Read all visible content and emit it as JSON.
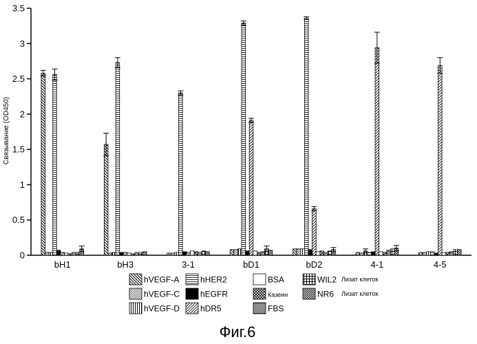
{
  "caption": "Фиг.6",
  "chart_data": {
    "type": "bar",
    "ylabel": "Связывание (OD450)",
    "xlabel": "",
    "ylim": [
      0,
      3.5
    ],
    "yticks": [
      0,
      0.5,
      1,
      1.5,
      2,
      2.5,
      3,
      3.5
    ],
    "ytick_labels": [
      "0",
      "0.5",
      "1",
      "1.5",
      "2",
      "2.5",
      "3",
      "3.5"
    ],
    "categories": [
      "bH1",
      "bH3",
      "3-1",
      "bD1",
      "bD2",
      "4-1",
      "4-5"
    ],
    "series": [
      {
        "name": "hVEGF-A",
        "pattern": "diag-back",
        "values": [
          2.58,
          1.57,
          0.03,
          0.08,
          0.09,
          0.04,
          0.04
        ]
      },
      {
        "name": "hVEGF-C",
        "pattern": "diag-fwd-fine",
        "values": [
          0.04,
          0.03,
          0.03,
          0.08,
          0.09,
          0.03,
          0.04
        ]
      },
      {
        "name": "hVEGF-D",
        "pattern": "vertical",
        "values": [
          0.04,
          0.04,
          0.04,
          0.09,
          0.09,
          0.06,
          0.05
        ]
      },
      {
        "name": "hHER2",
        "pattern": "horizontal",
        "values": [
          2.56,
          2.73,
          2.3,
          3.29,
          3.36,
          0.04,
          0.05
        ]
      },
      {
        "name": "hEGFR",
        "pattern": "solid",
        "values": [
          0.07,
          0.04,
          0.05,
          0.06,
          0.08,
          0.05,
          0.03
        ]
      },
      {
        "name": "hDR5",
        "pattern": "diag-fwd",
        "values": [
          0.04,
          0.04,
          0.04,
          1.91,
          0.66,
          2.94,
          2.69
        ]
      },
      {
        "name": "BSA",
        "pattern": "empty",
        "values": [
          0.03,
          0.03,
          0.06,
          0.06,
          0.05,
          0.05,
          0.04
        ]
      },
      {
        "name": "Казеин",
        "pattern": "crosshatch",
        "values": [
          0.02,
          0.02,
          0.05,
          0.04,
          0.06,
          0.04,
          0.04
        ]
      },
      {
        "name": "FBS",
        "pattern": "horizontal-dense",
        "values": [
          0.04,
          0.04,
          0.04,
          0.05,
          0.04,
          0.07,
          0.05
        ]
      },
      {
        "name": "WIL2",
        "pattern": "grid",
        "values": [
          0.04,
          0.04,
          0.06,
          0.09,
          0.06,
          0.09,
          0.08
        ]
      },
      {
        "name": "NR6",
        "pattern": "diag-fwd-dense",
        "values": [
          0.09,
          0.05,
          0.05,
          0.07,
          0.08,
          0.1,
          0.08
        ]
      }
    ],
    "error_bars": [
      {
        "category": "bH1",
        "series": "hVEGF-A",
        "error": 0.04
      },
      {
        "category": "bH1",
        "series": "hHER2",
        "error": 0.08
      },
      {
        "category": "bH1",
        "series": "NR6",
        "error": 0.04
      },
      {
        "category": "bH3",
        "series": "hVEGF-A",
        "error": 0.16
      },
      {
        "category": "bH3",
        "series": "hHER2",
        "error": 0.07
      },
      {
        "category": "3-1",
        "series": "hHER2",
        "error": 0.03
      },
      {
        "category": "bD1",
        "series": "hHER2",
        "error": 0.03
      },
      {
        "category": "bD1",
        "series": "hDR5",
        "error": 0.03
      },
      {
        "category": "bD1",
        "series": "WIL2",
        "error": 0.04
      },
      {
        "category": "bD2",
        "series": "hHER2",
        "error": 0.02
      },
      {
        "category": "bD2",
        "series": "hDR5",
        "error": 0.03
      },
      {
        "category": "bD2",
        "series": "NR6",
        "error": 0.03
      },
      {
        "category": "4-1",
        "series": "hDR5",
        "error": 0.22
      },
      {
        "category": "4-1",
        "series": "hVEGF-D",
        "error": 0.03
      },
      {
        "category": "4-1",
        "series": "NR6",
        "error": 0.04
      },
      {
        "category": "4-5",
        "series": "hDR5",
        "error": 0.11
      }
    ],
    "legend": {
      "placement": "bottom",
      "columns": [
        [
          "hVEGF-A",
          "hVEGF-C",
          "hVEGF-D"
        ],
        [
          "hHER2",
          "hEGFR",
          "hDR5"
        ],
        [
          "BSA",
          "Казеин",
          "FBS"
        ],
        [
          "WIL2",
          "NR6"
        ]
      ],
      "notes": {
        "WIL2": "Лизат клеток",
        "NR6": "Лизат клеток"
      }
    }
  }
}
